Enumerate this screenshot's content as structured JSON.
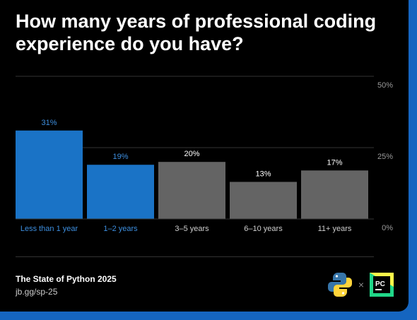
{
  "title": "How many years of professional coding experience do you have?",
  "footer": {
    "source": "The State of Python 2025",
    "link": "jb.gg/sp-25"
  },
  "logos": {
    "left_icon": "python-logo-icon",
    "separator": "×",
    "right_icon": "pycharm-logo-icon",
    "right_text": "PC"
  },
  "colors": {
    "highlight": "#1a73c6",
    "highlight_label": "#3d8fe0",
    "other": "#646464",
    "background": "#000000",
    "frame": "#1565c0"
  },
  "chart_data": {
    "type": "bar",
    "categories": [
      "Less than 1 year",
      "1–2 years",
      "3–5 years",
      "6–10 years",
      "11+ years"
    ],
    "values": [
      31,
      19,
      20,
      13,
      17
    ],
    "value_labels": [
      "31%",
      "19%",
      "20%",
      "13%",
      "17%"
    ],
    "highlighted": [
      true,
      true,
      false,
      false,
      false
    ],
    "yticks": [
      0,
      25,
      50
    ],
    "ytick_labels": [
      "0%",
      "25%",
      "50%"
    ],
    "ylim": [
      0,
      50
    ],
    "grid": true,
    "title": "",
    "xlabel": "",
    "ylabel": ""
  }
}
